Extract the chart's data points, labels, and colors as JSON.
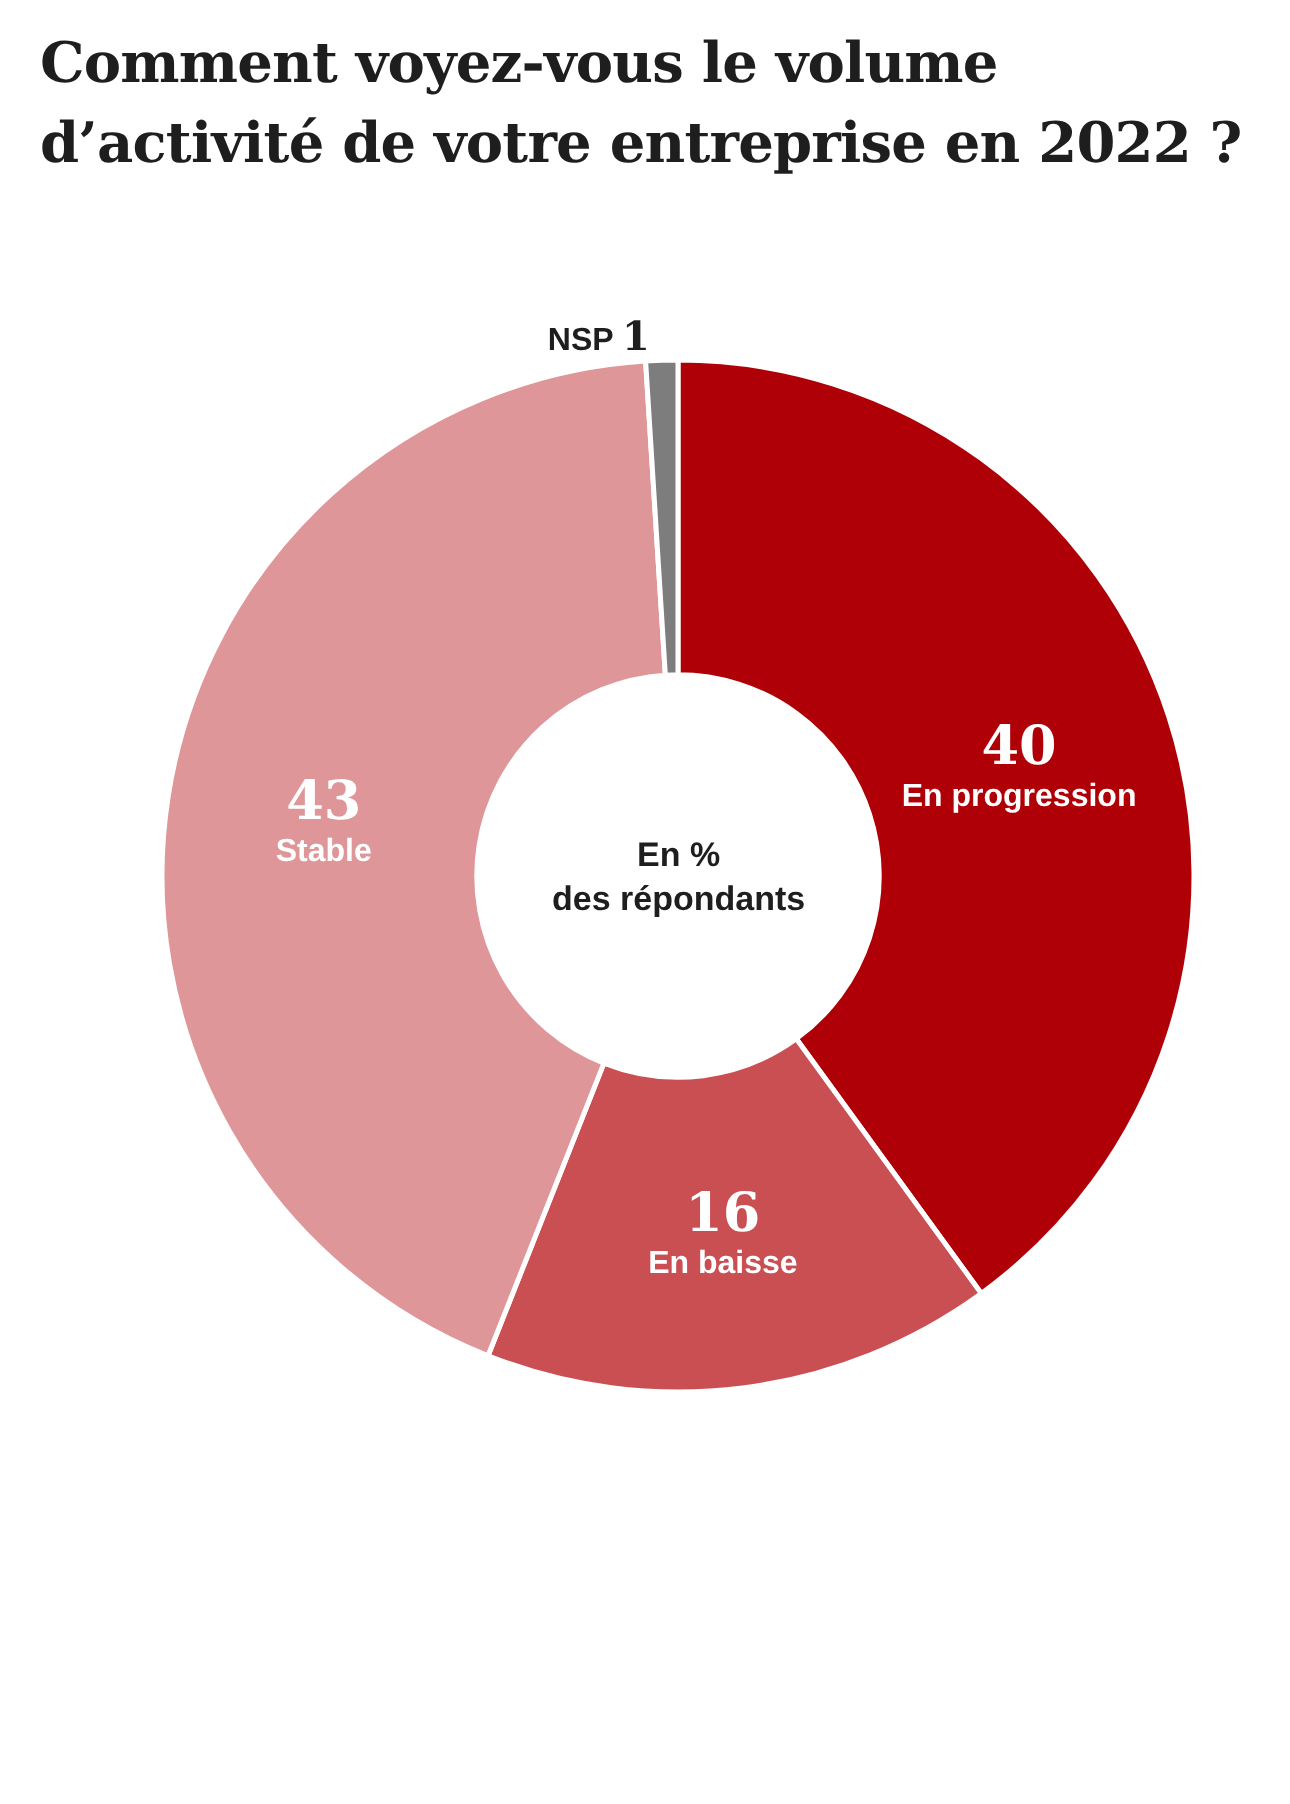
{
  "chart_data": {
    "type": "donut",
    "title": "Comment voyez-vous le volume\nd’activité de votre entreprise en 2022 ?",
    "categories": [
      "En progression",
      "En baisse",
      "Stable",
      "NSP"
    ],
    "values": [
      40,
      16,
      43,
      1
    ],
    "colors": [
      "#b00007",
      "#c94f53",
      "#de9699",
      "#7d7d7d"
    ],
    "data_labels": true,
    "annotations": [
      "En %\ndes répondants"
    ]
  }
}
